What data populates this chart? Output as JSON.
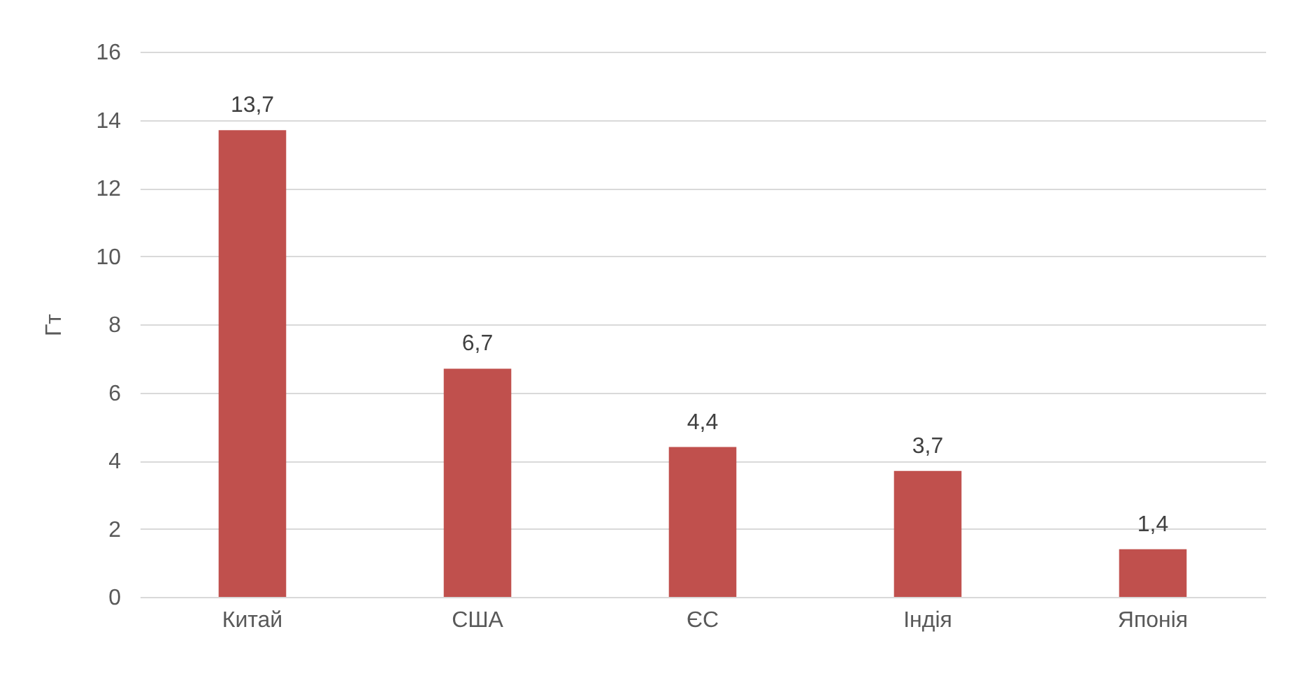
{
  "chart_data": {
    "type": "bar",
    "ylabel": "Гт",
    "categories": [
      "Китай",
      "США",
      "ЄС",
      "Індія",
      "Японія"
    ],
    "values": [
      13.7,
      6.7,
      4.4,
      3.7,
      1.4
    ],
    "value_labels": [
      "13,7",
      "6,7",
      "4,4",
      "3,7",
      "1,4"
    ],
    "color": "#c0504d",
    "ylim": [
      0,
      16
    ],
    "yticks": [
      0,
      2,
      4,
      6,
      8,
      10,
      12,
      14,
      16
    ],
    "grid": "y"
  }
}
